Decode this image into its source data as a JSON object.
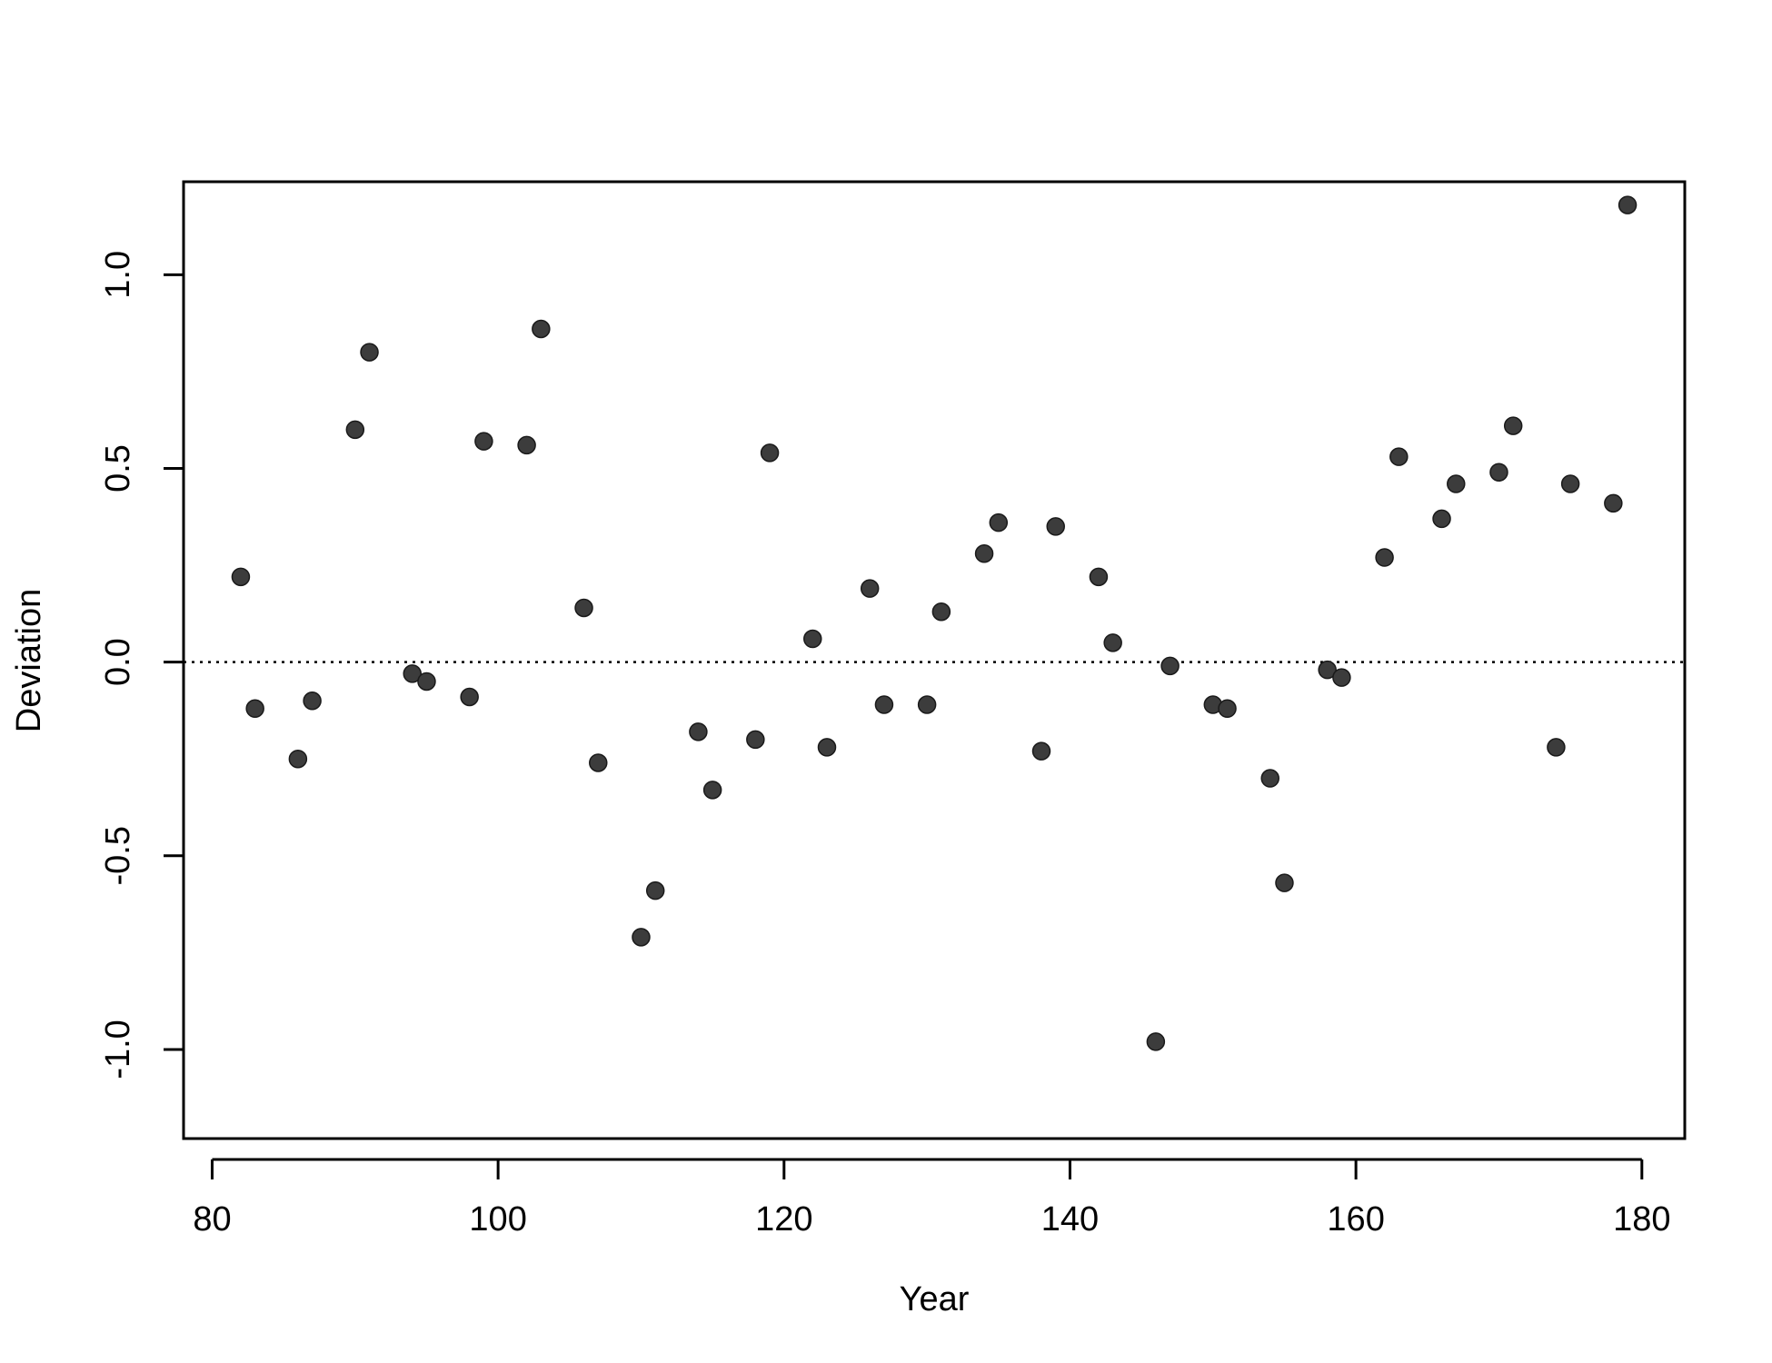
{
  "chart_data": {
    "type": "scatter",
    "title": "",
    "xlabel": "Year",
    "ylabel": "Deviation",
    "xlim": [
      78,
      183
    ],
    "ylim": [
      -1.23,
      1.24
    ],
    "x_ticks": [
      80,
      100,
      120,
      140,
      160,
      180
    ],
    "y_ticks": [
      -1.0,
      -0.5,
      0.0,
      0.5,
      1.0
    ],
    "x_tick_labels": [
      "80",
      "100",
      "120",
      "140",
      "160",
      "180"
    ],
    "y_tick_labels": [
      "-1.0",
      "-0.5",
      "0.0",
      "0.5",
      "1.0"
    ],
    "reference_line": {
      "y": 0.0,
      "style": "dotted"
    },
    "grid": false,
    "legend": "none",
    "point_color": "#3c3c3c",
    "points": [
      {
        "x": 82,
        "y": 0.22
      },
      {
        "x": 83,
        "y": -0.12
      },
      {
        "x": 86,
        "y": -0.25
      },
      {
        "x": 87,
        "y": -0.1
      },
      {
        "x": 90,
        "y": 0.6
      },
      {
        "x": 91,
        "y": 0.8
      },
      {
        "x": 94,
        "y": -0.03
      },
      {
        "x": 95,
        "y": -0.05
      },
      {
        "x": 98,
        "y": -0.09
      },
      {
        "x": 99,
        "y": 0.57
      },
      {
        "x": 102,
        "y": 0.56
      },
      {
        "x": 103,
        "y": 0.86
      },
      {
        "x": 106,
        "y": 0.14
      },
      {
        "x": 107,
        "y": -0.26
      },
      {
        "x": 110,
        "y": -0.71
      },
      {
        "x": 111,
        "y": -0.59
      },
      {
        "x": 114,
        "y": -0.18
      },
      {
        "x": 115,
        "y": -0.33
      },
      {
        "x": 118,
        "y": -0.2
      },
      {
        "x": 119,
        "y": 0.54
      },
      {
        "x": 122,
        "y": 0.06
      },
      {
        "x": 123,
        "y": -0.22
      },
      {
        "x": 126,
        "y": 0.19
      },
      {
        "x": 127,
        "y": -0.11
      },
      {
        "x": 130,
        "y": -0.11
      },
      {
        "x": 131,
        "y": 0.13
      },
      {
        "x": 134,
        "y": 0.28
      },
      {
        "x": 135,
        "y": 0.36
      },
      {
        "x": 138,
        "y": -0.23
      },
      {
        "x": 139,
        "y": 0.35
      },
      {
        "x": 142,
        "y": 0.22
      },
      {
        "x": 143,
        "y": 0.05
      },
      {
        "x": 146,
        "y": -0.98
      },
      {
        "x": 147,
        "y": -0.01
      },
      {
        "x": 150,
        "y": -0.11
      },
      {
        "x": 151,
        "y": -0.12
      },
      {
        "x": 154,
        "y": -0.3
      },
      {
        "x": 155,
        "y": -0.57
      },
      {
        "x": 158,
        "y": -0.02
      },
      {
        "x": 159,
        "y": -0.04
      },
      {
        "x": 162,
        "y": 0.27
      },
      {
        "x": 163,
        "y": 0.53
      },
      {
        "x": 166,
        "y": 0.37
      },
      {
        "x": 167,
        "y": 0.46
      },
      {
        "x": 170,
        "y": 0.49
      },
      {
        "x": 171,
        "y": 0.61
      },
      {
        "x": 174,
        "y": -0.22
      },
      {
        "x": 175,
        "y": 0.46
      },
      {
        "x": 178,
        "y": 0.41
      },
      {
        "x": 179,
        "y": 1.18
      }
    ]
  }
}
